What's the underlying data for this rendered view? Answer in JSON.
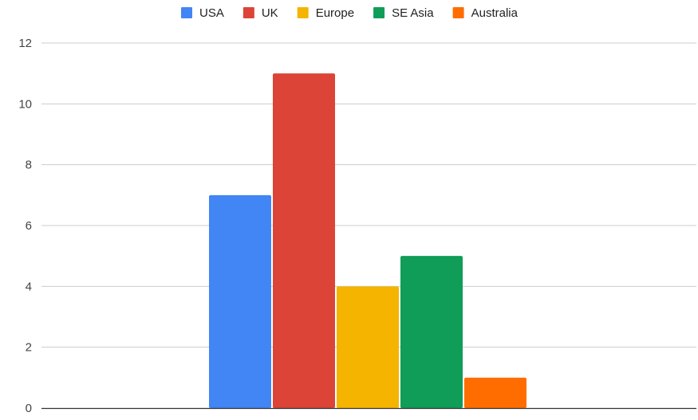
{
  "chart_data": {
    "type": "bar",
    "categories": [
      ""
    ],
    "series": [
      {
        "name": "USA",
        "values": [
          7
        ],
        "color": "#4285f4"
      },
      {
        "name": "UK",
        "values": [
          11
        ],
        "color": "#db4437"
      },
      {
        "name": "Europe",
        "values": [
          4
        ],
        "color": "#f4b400"
      },
      {
        "name": "SE Asia",
        "values": [
          5
        ],
        "color": "#0f9d58"
      },
      {
        "name": "Australia",
        "values": [
          1
        ],
        "color": "#ff6d01"
      }
    ],
    "ylim": [
      0,
      12
    ],
    "yticks": [
      0,
      2,
      4,
      6,
      8,
      10,
      12
    ],
    "grid": true,
    "legend_position": "top-center",
    "gridline_color": "#cccccc",
    "axis_color": "#333333"
  }
}
